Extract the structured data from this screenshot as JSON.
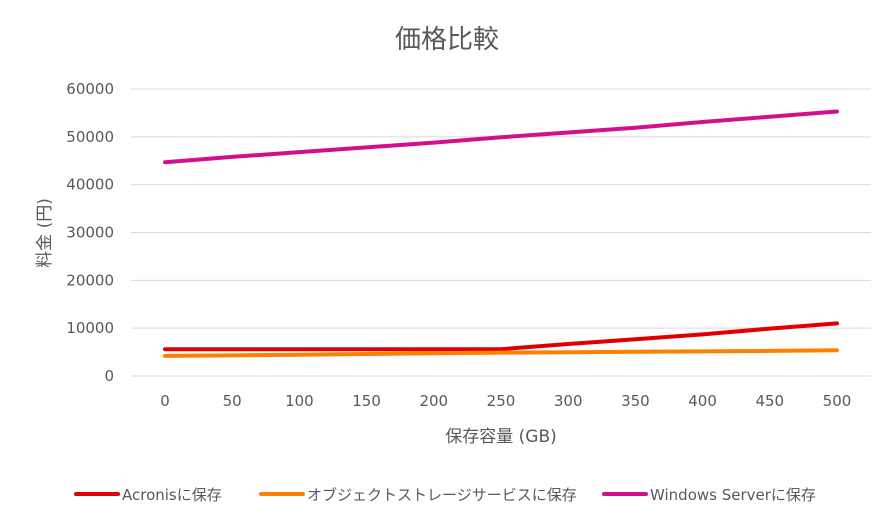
{
  "chart_data": {
    "type": "line",
    "title": "価格比較",
    "xlabel": "保存容量 (GB)",
    "ylabel": "料金 (円)",
    "x": [
      0,
      50,
      100,
      150,
      200,
      250,
      300,
      350,
      400,
      450,
      500
    ],
    "x_tick_labels": [
      "0",
      "50",
      "100",
      "150",
      "200",
      "250",
      "300",
      "350",
      "400",
      "450",
      "500"
    ],
    "ylim": [
      0,
      60000
    ],
    "y_ticks": [
      0,
      10000,
      20000,
      30000,
      40000,
      50000,
      60000
    ],
    "y_tick_labels": [
      "0",
      "10000",
      "20000",
      "30000",
      "40000",
      "50000",
      "60000"
    ],
    "grid": true,
    "legend_position": "bottom",
    "series": [
      {
        "name": "Acronisに保存",
        "color": "#e00000",
        "values": [
          5600,
          5600,
          5600,
          5600,
          5600,
          5600,
          6700,
          7700,
          8700,
          9900,
          11000
        ]
      },
      {
        "name": "オブジェクトストレージサービスに保存",
        "color": "#ff8000",
        "values": [
          4200,
          4300,
          4450,
          4600,
          4750,
          4900,
          4950,
          5050,
          5150,
          5250,
          5400
        ]
      },
      {
        "name": "Windows Serverに保存",
        "color": "#d3108c",
        "values": [
          44700,
          45800,
          46800,
          47800,
          48800,
          49900,
          50900,
          51900,
          53100,
          54200,
          55300
        ]
      }
    ]
  }
}
